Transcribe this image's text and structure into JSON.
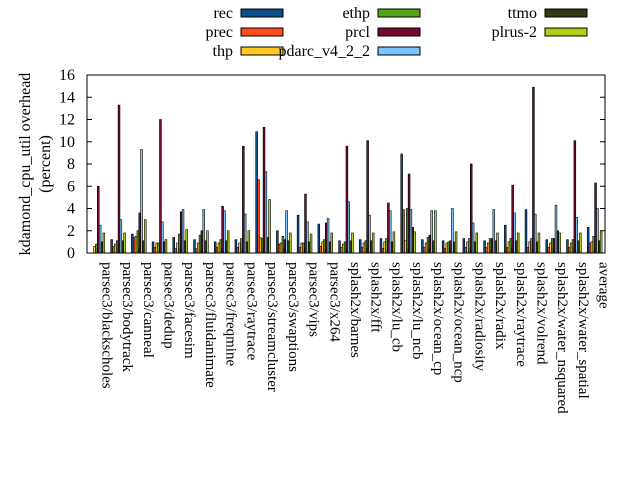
{
  "chart_data": {
    "type": "bar",
    "title": "",
    "xlabel": "",
    "ylabel": "kdamond_cpu_util overhead\n(percent)",
    "ylim": [
      0,
      16
    ],
    "yticks": [
      0,
      2,
      4,
      6,
      8,
      10,
      12,
      14,
      16
    ],
    "grid": false,
    "legend_position": "top",
    "categories": [
      "parsec3/blackscholes",
      "parsec3/bodytrack",
      "parsec3/canneal",
      "parsec3/dedup",
      "parsec3/facesim",
      "parsec3/fluidanimate",
      "parsec3/freqmine",
      "parsec3/raytrace",
      "parsec3/streamcluster",
      "parsec3/swaptions",
      "parsec3/vips",
      "parsec3/x264",
      "splash2x/barnes",
      "splash2x/fft",
      "splash2x/lu_cb",
      "splash2x/lu_ncb",
      "splash2x/ocean_cp",
      "splash2x/ocean_ncp",
      "splash2x/radiosity",
      "splash2x/radix",
      "splash2x/raytrace",
      "splash2x/volrend",
      "splash2x/water_nsquared",
      "splash2x/water_spatial",
      "average"
    ],
    "series": [
      {
        "name": "rec",
        "color": "#0b4e8a",
        "values": [
          0,
          1.2,
          1.7,
          1.0,
          1.4,
          1.2,
          1.0,
          1.2,
          10.9,
          2.0,
          3.4,
          2.6,
          1.1,
          1.2,
          1.3,
          8.9,
          1.2,
          1.1,
          1.3,
          1.1,
          2.5,
          3.9,
          1.2,
          1.2,
          2.3
        ]
      },
      {
        "name": "prec",
        "color": "#ff4b1a",
        "values": [
          0,
          0.6,
          1.4,
          0.5,
          0.4,
          0.4,
          0.5,
          0.5,
          6.6,
          0.8,
          0.5,
          0.6,
          0.5,
          0.5,
          0.4,
          3.9,
          0.5,
          0.4,
          0.5,
          0.5,
          0.5,
          0.5,
          0.5,
          0.5,
          0.9
        ]
      },
      {
        "name": "thp",
        "color": "#ffc820",
        "values": [
          0.6,
          0.8,
          1.5,
          0.9,
          0.9,
          0.9,
          0.9,
          0.9,
          1.4,
          0.9,
          0.9,
          1.0,
          0.8,
          0.9,
          1.0,
          1.1,
          0.9,
          0.9,
          1.0,
          0.9,
          1.0,
          1.0,
          0.9,
          0.9,
          1.0
        ]
      },
      {
        "name": "ethp",
        "color": "#55a41a",
        "values": [
          0.8,
          1.1,
          2.0,
          0.9,
          1.7,
          1.6,
          1.2,
          1.3,
          1.3,
          1.5,
          0.9,
          1.2,
          1.0,
          1.1,
          1.3,
          4.0,
          1.4,
          1.0,
          1.3,
          1.3,
          1.3,
          1.3,
          1.3,
          1.2,
          1.5
        ]
      },
      {
        "name": "prcl",
        "color": "#740a2e",
        "values": [
          6.0,
          13.3,
          3.6,
          12.0,
          3.7,
          2.0,
          4.2,
          9.6,
          11.3,
          1.2,
          5.3,
          2.7,
          9.6,
          10.1,
          4.5,
          7.1,
          1.6,
          1.1,
          8.0,
          1.3,
          6.1,
          14.9,
          1.3,
          10.1,
          6.3
        ]
      },
      {
        "name": "pdarc_v4_2_2",
        "color": "#7ac4ff",
        "values": [
          2.5,
          3.0,
          9.3,
          2.8,
          3.9,
          3.9,
          3.8,
          3.5,
          7.3,
          3.8,
          2.8,
          3.1,
          4.6,
          3.4,
          3.8,
          3.9,
          3.8,
          4.0,
          2.7,
          3.9,
          3.6,
          3.5,
          4.3,
          3.2,
          4.0
        ]
      },
      {
        "name": "ttmo",
        "color": "#2f3a12",
        "values": [
          1.0,
          1.1,
          1.1,
          1.0,
          1.1,
          1.1,
          1.1,
          1.0,
          1.4,
          1.1,
          1.0,
          1.0,
          1.1,
          1.1,
          1.0,
          2.3,
          1.1,
          1.0,
          1.0,
          1.1,
          1.1,
          1.0,
          2.0,
          1.1,
          1.1
        ]
      },
      {
        "name": "plrus-2",
        "color": "#b2cf15",
        "values": [
          1.8,
          1.8,
          3.0,
          1.2,
          2.1,
          2.0,
          2.0,
          2.0,
          4.8,
          1.8,
          1.7,
          1.8,
          1.8,
          1.8,
          1.9,
          1.9,
          3.8,
          1.9,
          1.8,
          1.8,
          1.8,
          1.8,
          1.8,
          1.8,
          1.9
        ]
      }
    ]
  }
}
